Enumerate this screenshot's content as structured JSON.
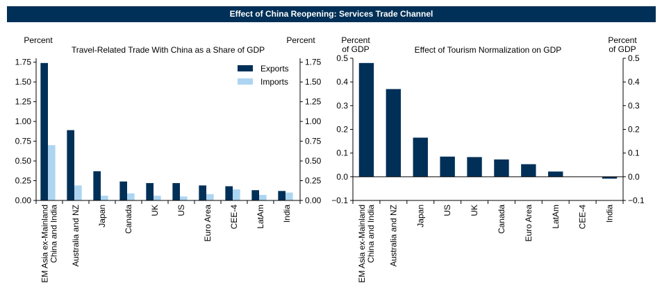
{
  "banner_title": "Effect of China Reopening: Services Trade Channel",
  "colors": {
    "banner": "#003057",
    "exports": "#003057",
    "imports": "#add5f1",
    "axis": "#000000"
  },
  "chart_data": [
    {
      "type": "bar",
      "title": "Travel-Related Trade With China as a Share of GDP",
      "left_unit": "Percent",
      "right_unit": "Percent",
      "categories": [
        "EM Asia ex-Mainland\nChina and India",
        "Australia and NZ",
        "Japan",
        "Canada",
        "UK",
        "US",
        "Euro Area",
        "CEE-4",
        "LatAm",
        "India"
      ],
      "series": [
        {
          "name": "Exports",
          "color": "#003057",
          "values": [
            1.74,
            0.89,
            0.37,
            0.24,
            0.22,
            0.22,
            0.19,
            0.18,
            0.13,
            0.12
          ]
        },
        {
          "name": "Imports",
          "color": "#add5f1",
          "values": [
            0.7,
            0.19,
            0.06,
            0.09,
            0.06,
            0.05,
            0.08,
            0.14,
            0.07,
            0.1
          ]
        }
      ],
      "ylim": [
        0,
        1.8
      ],
      "yticks": [
        "0.00",
        "0.25",
        "0.50",
        "0.75",
        "1.00",
        "1.25",
        "1.50",
        "1.75"
      ],
      "legend": "top-right"
    },
    {
      "type": "bar",
      "title": "Effect of Tourism Normalization on GDP",
      "left_unit": "Percent\nof GDP",
      "right_unit": "Percent\nof GDP",
      "categories": [
        "EM Asia ex-Mainland\nChina and India",
        "Australia and NZ",
        "Japan",
        "US",
        "UK",
        "Canada",
        "Euro Area",
        "LatAm",
        "CEE-4",
        "India"
      ],
      "series": [
        {
          "name": "Effect",
          "color": "#003057",
          "values": [
            0.48,
            0.37,
            0.165,
            0.085,
            0.083,
            0.073,
            0.053,
            0.022,
            0.0,
            -0.008
          ]
        }
      ],
      "ylim": [
        -0.1,
        0.5
      ],
      "yticks": [
        "−0.1",
        "0.0",
        "0.1",
        "0.2",
        "0.3",
        "0.4",
        "0.5"
      ],
      "legend": "none"
    }
  ]
}
